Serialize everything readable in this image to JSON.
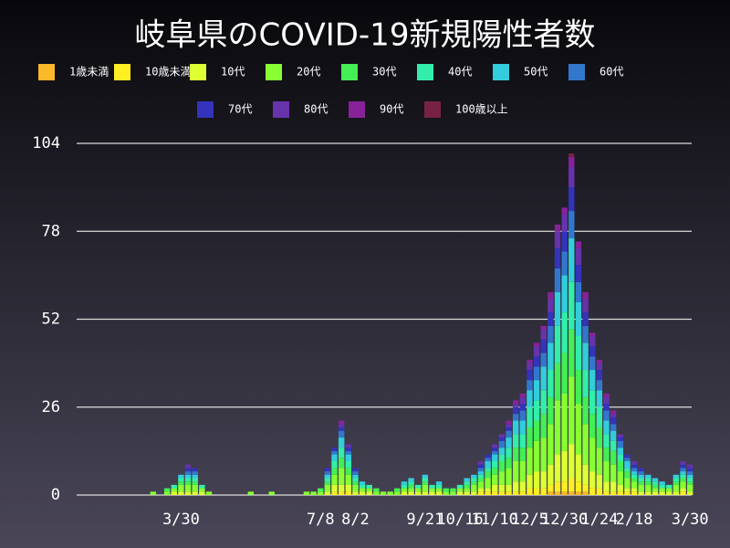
{
  "chart_data": {
    "type": "stacked_bar",
    "title": "岐阜県のCOVID-19新規陽性者数",
    "categories": [
      null,
      null,
      null,
      null,
      null,
      null,
      null,
      null,
      null,
      null,
      null,
      null,
      null,
      null,
      null,
      "3/30",
      null,
      null,
      null,
      null,
      null,
      null,
      null,
      null,
      null,
      null,
      null,
      null,
      null,
      null,
      null,
      null,
      null,
      null,
      null,
      "7/8",
      null,
      null,
      null,
      null,
      "8/2",
      null,
      null,
      null,
      null,
      null,
      null,
      null,
      null,
      null,
      "9/21",
      null,
      null,
      null,
      null,
      "10/16",
      null,
      null,
      null,
      null,
      "11/10",
      null,
      null,
      null,
      null,
      "12/5",
      null,
      null,
      null,
      null,
      "12/30",
      null,
      null,
      null,
      null,
      "1/24",
      null,
      null,
      null,
      null,
      "2/18",
      null,
      null,
      null,
      null,
      null,
      null,
      null,
      "3/30"
    ],
    "ylim": [
      0,
      104
    ],
    "yticks": [
      0,
      26,
      52,
      78,
      104
    ],
    "grid": true,
    "series": [
      {
        "name": "1歳未満",
        "color": "#fbb829",
        "values": [
          0,
          0,
          0,
          0,
          0,
          0,
          0,
          0,
          0,
          0,
          0,
          0,
          0,
          0,
          0,
          0,
          0,
          0,
          0,
          0,
          0,
          0,
          0,
          0,
          0,
          0,
          0,
          0,
          0,
          0,
          0,
          0,
          0,
          0,
          0,
          0,
          0,
          0,
          0,
          0,
          0,
          0,
          0,
          0,
          0,
          0,
          0,
          0,
          0,
          0,
          0,
          0,
          0,
          0,
          0,
          0,
          0,
          0,
          0,
          0,
          0,
          0,
          0,
          0,
          0,
          0,
          0,
          0,
          1,
          1,
          1,
          1,
          1,
          1,
          0,
          0,
          0,
          0,
          0,
          0,
          0,
          0,
          0,
          0,
          0,
          0,
          0,
          0,
          0
        ]
      },
      {
        "name": "10歳未満",
        "color": "#ffee22",
        "values": [
          0,
          0,
          0,
          0,
          0,
          0,
          0,
          0,
          0,
          0,
          0,
          0,
          0,
          0,
          0,
          0,
          0,
          0,
          0,
          0,
          0,
          0,
          0,
          0,
          0,
          0,
          0,
          0,
          0,
          0,
          0,
          0,
          0,
          0,
          0,
          0,
          0,
          1,
          1,
          1,
          0,
          0,
          0,
          0,
          0,
          0,
          0,
          0,
          0,
          0,
          0,
          0,
          0,
          0,
          0,
          0,
          0,
          0,
          1,
          1,
          1,
          1,
          1,
          1,
          1,
          2,
          2,
          2,
          2,
          3,
          3,
          4,
          3,
          2,
          2,
          2,
          1,
          1,
          1,
          1,
          1,
          0,
          0,
          0,
          0,
          0,
          0,
          1,
          0
        ]
      },
      {
        "name": "10代",
        "color": "#ddff33",
        "values": [
          0,
          0,
          0,
          0,
          0,
          0,
          0,
          0,
          0,
          0,
          0,
          0,
          0,
          0,
          1,
          1,
          1,
          1,
          1,
          0,
          0,
          0,
          0,
          0,
          0,
          0,
          0,
          0,
          0,
          0,
          0,
          0,
          0,
          0,
          0,
          0,
          1,
          2,
          2,
          2,
          1,
          1,
          1,
          0,
          0,
          0,
          0,
          1,
          1,
          1,
          1,
          1,
          1,
          0,
          0,
          1,
          1,
          1,
          1,
          1,
          2,
          2,
          2,
          3,
          3,
          4,
          5,
          5,
          6,
          8,
          9,
          10,
          8,
          6,
          5,
          4,
          3,
          3,
          2,
          1,
          1,
          1,
          1,
          1,
          1,
          1,
          1,
          1,
          1
        ]
      },
      {
        "name": "20代",
        "color": "#88ff33",
        "values": [
          0,
          0,
          0,
          0,
          0,
          0,
          0,
          0,
          0,
          0,
          0,
          1,
          0,
          1,
          1,
          2,
          2,
          2,
          1,
          1,
          0,
          0,
          0,
          0,
          0,
          1,
          0,
          0,
          1,
          0,
          0,
          0,
          0,
          1,
          1,
          1,
          2,
          3,
          5,
          3,
          2,
          1,
          1,
          1,
          1,
          1,
          1,
          1,
          1,
          1,
          2,
          1,
          1,
          1,
          1,
          1,
          1,
          2,
          2,
          3,
          3,
          4,
          5,
          6,
          6,
          8,
          9,
          10,
          12,
          16,
          17,
          20,
          15,
          12,
          10,
          8,
          6,
          5,
          4,
          3,
          2,
          2,
          2,
          1,
          1,
          1,
          2,
          2,
          2
        ]
      },
      {
        "name": "30代",
        "color": "#44ee55",
        "values": [
          0,
          0,
          0,
          0,
          0,
          0,
          0,
          0,
          0,
          0,
          0,
          0,
          0,
          1,
          0,
          1,
          1,
          1,
          0,
          0,
          0,
          0,
          0,
          0,
          0,
          0,
          0,
          0,
          0,
          0,
          0,
          0,
          0,
          0,
          0,
          1,
          1,
          2,
          3,
          2,
          1,
          0,
          0,
          1,
          0,
          0,
          1,
          0,
          1,
          0,
          1,
          0,
          0,
          1,
          1,
          0,
          1,
          1,
          1,
          2,
          2,
          3,
          3,
          4,
          4,
          6,
          6,
          7,
          8,
          11,
          12,
          14,
          10,
          8,
          7,
          6,
          4,
          4,
          3,
          2,
          1,
          1,
          1,
          1,
          0,
          0,
          1,
          1,
          1
        ]
      },
      {
        "name": "40代",
        "color": "#33eeaa",
        "values": [
          0,
          0,
          0,
          0,
          0,
          0,
          0,
          0,
          0,
          0,
          0,
          0,
          0,
          0,
          1,
          1,
          1,
          1,
          1,
          0,
          0,
          0,
          0,
          0,
          0,
          0,
          0,
          0,
          0,
          0,
          0,
          0,
          0,
          0,
          0,
          0,
          1,
          2,
          3,
          2,
          1,
          1,
          1,
          0,
          0,
          0,
          0,
          1,
          1,
          1,
          1,
          1,
          1,
          0,
          0,
          1,
          1,
          1,
          1,
          1,
          2,
          2,
          3,
          4,
          4,
          6,
          6,
          7,
          8,
          11,
          12,
          14,
          10,
          8,
          7,
          6,
          4,
          3,
          2,
          1,
          1,
          1,
          1,
          1,
          1,
          1,
          1,
          1,
          1
        ]
      },
      {
        "name": "50代",
        "color": "#33ccdd",
        "values": [
          0,
          0,
          0,
          0,
          0,
          0,
          0,
          0,
          0,
          0,
          0,
          0,
          0,
          0,
          0,
          1,
          1,
          1,
          0,
          0,
          0,
          0,
          0,
          0,
          0,
          0,
          0,
          0,
          0,
          0,
          0,
          0,
          0,
          0,
          0,
          0,
          1,
          2,
          3,
          2,
          1,
          1,
          0,
          0,
          0,
          0,
          0,
          1,
          1,
          0,
          1,
          0,
          1,
          0,
          0,
          0,
          1,
          1,
          1,
          2,
          2,
          2,
          3,
          4,
          4,
          5,
          6,
          7,
          8,
          10,
          11,
          13,
          10,
          8,
          6,
          5,
          4,
          3,
          2,
          2,
          1,
          1,
          1,
          1,
          1,
          0,
          1,
          1,
          1
        ]
      },
      {
        "name": "60代",
        "color": "#3377cc",
        "values": [
          0,
          0,
          0,
          0,
          0,
          0,
          0,
          0,
          0,
          0,
          0,
          0,
          0,
          0,
          0,
          0,
          1,
          1,
          0,
          0,
          0,
          0,
          0,
          0,
          0,
          0,
          0,
          0,
          0,
          0,
          0,
          0,
          0,
          0,
          0,
          0,
          1,
          1,
          2,
          1,
          1,
          0,
          0,
          0,
          0,
          0,
          0,
          0,
          0,
          0,
          0,
          0,
          0,
          0,
          0,
          0,
          0,
          0,
          1,
          1,
          1,
          2,
          2,
          2,
          3,
          3,
          4,
          4,
          5,
          7,
          7,
          8,
          6,
          5,
          4,
          3,
          3,
          2,
          2,
          1,
          1,
          1,
          0,
          0,
          0,
          0,
          0,
          1,
          1
        ]
      },
      {
        "name": "70代",
        "color": "#3333bb",
        "values": [
          0,
          0,
          0,
          0,
          0,
          0,
          0,
          0,
          0,
          0,
          0,
          0,
          0,
          0,
          0,
          0,
          1,
          1,
          0,
          0,
          0,
          0,
          0,
          0,
          0,
          0,
          0,
          0,
          0,
          0,
          0,
          0,
          0,
          0,
          0,
          0,
          1,
          1,
          1,
          1,
          1,
          0,
          0,
          0,
          0,
          0,
          0,
          0,
          0,
          0,
          0,
          0,
          0,
          0,
          0,
          0,
          0,
          0,
          1,
          1,
          1,
          1,
          1,
          2,
          2,
          3,
          3,
          4,
          4,
          6,
          6,
          7,
          5,
          4,
          3,
          3,
          2,
          2,
          1,
          1,
          1,
          1,
          0,
          0,
          0,
          0,
          0,
          1,
          1
        ]
      },
      {
        "name": "80代",
        "color": "#6633aa",
        "values": [
          0,
          0,
          0,
          0,
          0,
          0,
          0,
          0,
          0,
          0,
          0,
          0,
          0,
          0,
          0,
          0,
          1,
          0,
          0,
          0,
          0,
          0,
          0,
          0,
          0,
          0,
          0,
          0,
          0,
          0,
          0,
          0,
          0,
          0,
          0,
          0,
          0,
          0,
          1,
          1,
          0,
          0,
          0,
          0,
          0,
          0,
          0,
          0,
          0,
          0,
          0,
          0,
          0,
          0,
          0,
          0,
          0,
          0,
          1,
          0,
          1,
          1,
          1,
          1,
          2,
          2,
          3,
          3,
          4,
          5,
          5,
          6,
          5,
          4,
          3,
          2,
          2,
          1,
          1,
          0,
          1,
          0,
          0,
          0,
          0,
          0,
          0,
          1,
          1
        ]
      },
      {
        "name": "90代",
        "color": "#882299",
        "values": [
          0,
          0,
          0,
          0,
          0,
          0,
          0,
          0,
          0,
          0,
          0,
          0,
          0,
          0,
          0,
          0,
          0,
          0,
          0,
          0,
          0,
          0,
          0,
          0,
          0,
          0,
          0,
          0,
          0,
          0,
          0,
          0,
          0,
          0,
          0,
          0,
          0,
          0,
          1,
          0,
          0,
          0,
          0,
          0,
          0,
          0,
          0,
          0,
          0,
          0,
          0,
          0,
          0,
          0,
          0,
          0,
          0,
          0,
          0,
          0,
          0,
          0,
          1,
          1,
          1,
          1,
          1,
          1,
          2,
          2,
          2,
          3,
          2,
          2,
          1,
          1,
          1,
          1,
          0,
          0,
          0,
          0,
          0,
          0,
          0,
          0,
          0,
          0,
          0
        ]
      },
      {
        "name": "100歳以上",
        "color": "#772244",
        "values": [
          0,
          0,
          0,
          0,
          0,
          0,
          0,
          0,
          0,
          0,
          0,
          0,
          0,
          0,
          0,
          0,
          0,
          0,
          0,
          0,
          0,
          0,
          0,
          0,
          0,
          0,
          0,
          0,
          0,
          0,
          0,
          0,
          0,
          0,
          0,
          0,
          0,
          0,
          0,
          0,
          0,
          0,
          0,
          0,
          0,
          0,
          0,
          0,
          0,
          0,
          0,
          0,
          0,
          0,
          0,
          0,
          0,
          0,
          0,
          0,
          0,
          0,
          0,
          0,
          0,
          0,
          0,
          0,
          0,
          0,
          0,
          1,
          0,
          0,
          0,
          0,
          0,
          0,
          0,
          0,
          0,
          0,
          0,
          0,
          0,
          0,
          0,
          0,
          0
        ]
      }
    ]
  }
}
